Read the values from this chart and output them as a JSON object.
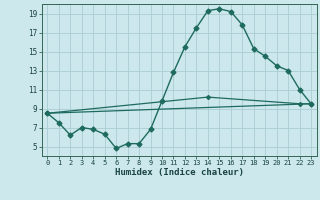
{
  "xlabel": "Humidex (Indice chaleur)",
  "bg_color": "#cce8ec",
  "grid_color": "#aaccd4",
  "line_color": "#1e6b5e",
  "xlim": [
    -0.5,
    23.5
  ],
  "ylim": [
    4.0,
    20.0
  ],
  "xticks": [
    0,
    1,
    2,
    3,
    4,
    5,
    6,
    7,
    8,
    9,
    10,
    11,
    12,
    13,
    14,
    15,
    16,
    17,
    18,
    19,
    20,
    21,
    22,
    23
  ],
  "yticks": [
    5,
    7,
    9,
    11,
    13,
    15,
    17,
    19
  ],
  "line1_x": [
    0,
    1,
    2,
    3,
    4,
    5,
    6,
    7,
    8,
    9,
    10,
    11,
    12,
    13,
    14,
    15,
    16,
    17,
    18,
    19,
    20,
    21,
    22,
    23
  ],
  "line1_y": [
    8.5,
    7.5,
    6.2,
    7.0,
    6.8,
    6.3,
    4.8,
    5.3,
    5.3,
    6.8,
    9.8,
    12.8,
    15.5,
    17.5,
    19.3,
    19.5,
    19.2,
    17.8,
    15.3,
    14.5,
    13.5,
    13.0,
    11.0,
    9.5
  ],
  "line2_x": [
    0,
    23
  ],
  "line2_y": [
    8.5,
    9.5
  ],
  "line3_x": [
    0,
    14,
    22,
    23
  ],
  "line3_y": [
    8.5,
    10.2,
    9.5,
    9.5
  ]
}
